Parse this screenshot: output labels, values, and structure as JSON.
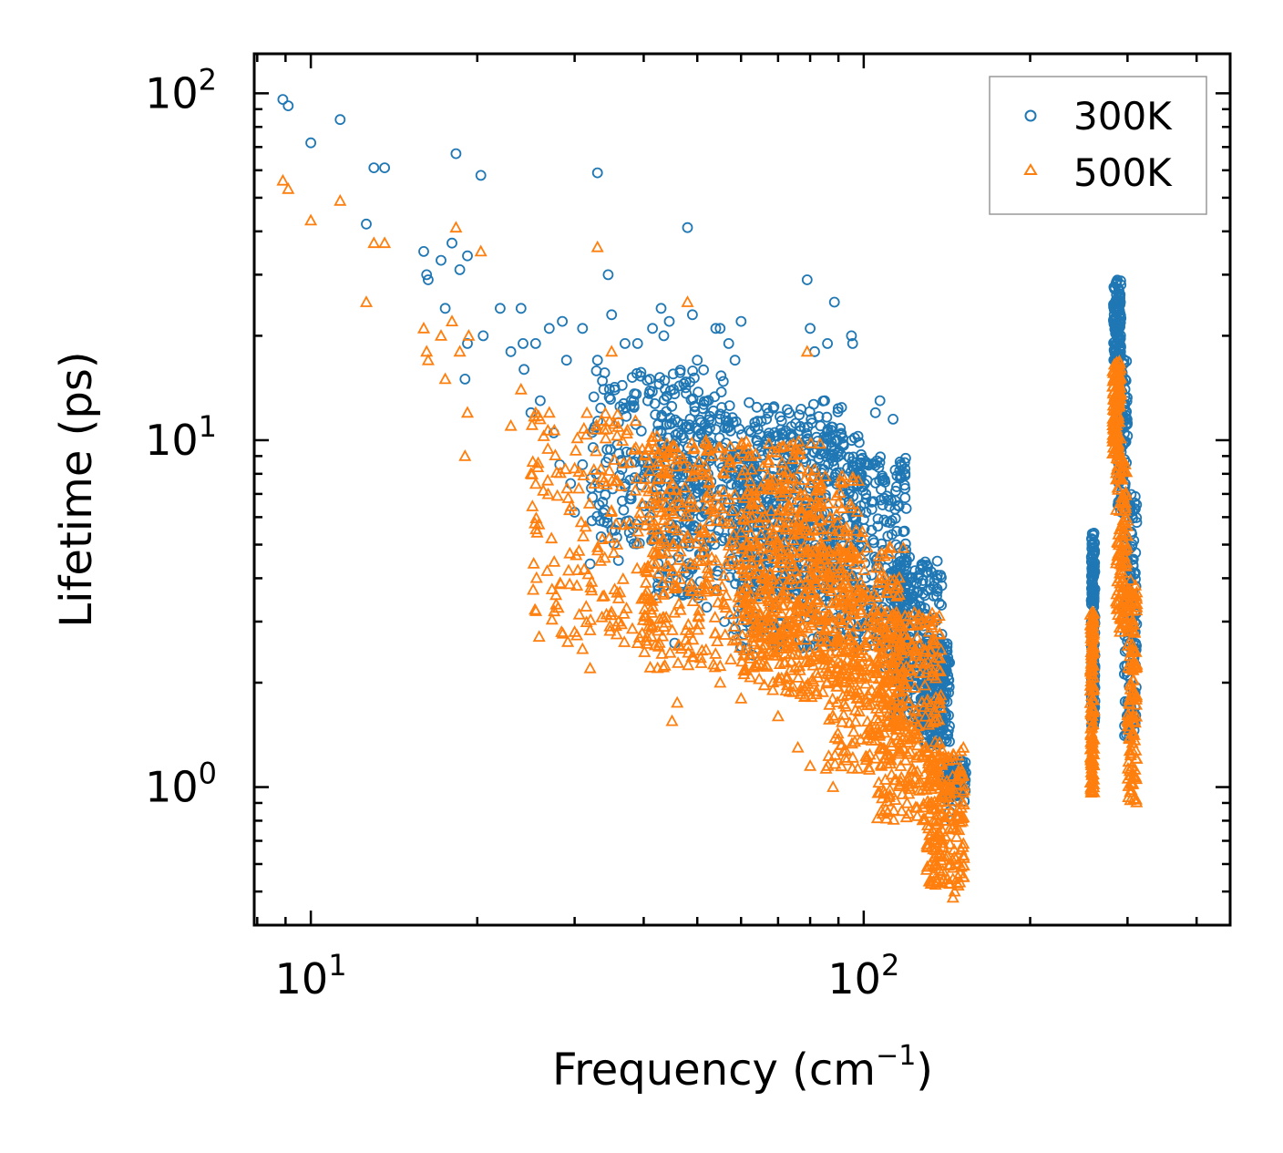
{
  "chart_data": {
    "type": "scatter",
    "title": "",
    "xlabel": "Frequency (cm",
    "xlabel_sup": "−1",
    "xlabel_close": ")",
    "ylabel": "Lifetime (ps)",
    "xscale": "log",
    "yscale": "log",
    "xlim": [
      7.9,
      460
    ],
    "ylim": [
      0.4,
      130
    ],
    "xticks": [
      {
        "value": 10,
        "base": "10",
        "exp": "1"
      },
      {
        "value": 100,
        "base": "10",
        "exp": "2"
      }
    ],
    "yticks": [
      {
        "value": 1,
        "base": "10",
        "exp": "0"
      },
      {
        "value": 10,
        "base": "10",
        "exp": "1"
      },
      {
        "value": 100,
        "base": "10",
        "exp": "2"
      }
    ],
    "legend_position": "top-right",
    "series": [
      {
        "name": "300K",
        "marker": "circle",
        "color": "#1f77b4",
        "points": [
          [
            8.9,
            96
          ],
          [
            9.1,
            92
          ],
          [
            10.0,
            72
          ],
          [
            11.3,
            84
          ],
          [
            12.6,
            42
          ],
          [
            13.0,
            61
          ],
          [
            13.6,
            61
          ],
          [
            16.0,
            35
          ],
          [
            16.2,
            30
          ],
          [
            16.3,
            29
          ],
          [
            17.2,
            33
          ],
          [
            18.0,
            37
          ],
          [
            18.3,
            67
          ],
          [
            18.6,
            31
          ],
          [
            19.2,
            34
          ],
          [
            20.3,
            58
          ],
          [
            17.5,
            24
          ],
          [
            19.2,
            19
          ],
          [
            19.0,
            15
          ],
          [
            20.5,
            20
          ],
          [
            22.0,
            24
          ],
          [
            23.0,
            18
          ],
          [
            24.0,
            24
          ],
          [
            24.2,
            19
          ],
          [
            24.3,
            16
          ],
          [
            25.5,
            19
          ],
          [
            27.0,
            21
          ],
          [
            28.5,
            22
          ],
          [
            29.0,
            17
          ],
          [
            31.0,
            21
          ],
          [
            33.0,
            17
          ],
          [
            33.0,
            59
          ],
          [
            34.5,
            30
          ],
          [
            35.0,
            23
          ],
          [
            37.0,
            19
          ],
          [
            39.0,
            19
          ],
          [
            41.5,
            21
          ],
          [
            43.0,
            24
          ],
          [
            43.5,
            20
          ],
          [
            44.5,
            22
          ],
          [
            48.0,
            41
          ],
          [
            49.0,
            23
          ],
          [
            50.0,
            17
          ],
          [
            54.0,
            21
          ],
          [
            55.0,
            21
          ],
          [
            57.0,
            19
          ],
          [
            58.5,
            17
          ],
          [
            60.0,
            22
          ],
          [
            64.0,
            10
          ],
          [
            79.0,
            29
          ],
          [
            80.0,
            21
          ],
          [
            81.5,
            18
          ],
          [
            85.0,
            13
          ],
          [
            86.0,
            19
          ],
          [
            88.5,
            25
          ],
          [
            95.0,
            20
          ],
          [
            95.5,
            19
          ],
          [
            105.0,
            12
          ],
          [
            107.0,
            13
          ],
          [
            113.0,
            11.5
          ],
          [
            114.0,
            8.2
          ],
          [
            117.0,
            8.4
          ],
          [
            121.0,
            4.6
          ],
          [
            25.0,
            12
          ],
          [
            26.0,
            13
          ],
          [
            27.5,
            10.5
          ],
          [
            28.2,
            8.5
          ],
          [
            29.5,
            7.5
          ],
          [
            30.0,
            6.2
          ],
          [
            31.0,
            8.5
          ],
          [
            32.0,
            4.4
          ],
          [
            34.0,
            6.3
          ],
          [
            35.5,
            5.5
          ],
          [
            36.0,
            4.5
          ],
          [
            38.0,
            5.2
          ],
          [
            41.0,
            6.0
          ],
          [
            45.5,
            2.6
          ],
          [
            47.0,
            3.6
          ],
          [
            52.0,
            3.3
          ],
          [
            56.0,
            3.0
          ],
          [
            63.0,
            2.4
          ],
          [
            143.0,
            0.85
          ],
          [
            144.0,
            0.8
          ],
          [
            145.0,
            0.95
          ],
          [
            152.0,
            1.05
          ],
          [
            153.0,
            1.1
          ],
          [
            150.0,
            1.0
          ]
        ],
        "clusters": [
          {
            "x": [
              32,
              58
            ],
            "y": [
              5,
              16
            ],
            "n": 260
          },
          {
            "x": [
              42,
              92
            ],
            "y": [
              3.5,
              13
            ],
            "n": 500
          },
          {
            "x": [
              58,
              100
            ],
            "y": [
              2.5,
              11
            ],
            "n": 400
          },
          {
            "x": [
              95,
              120
            ],
            "y": [
              2.2,
              9
            ],
            "n": 220
          },
          {
            "x": [
              112,
              140
            ],
            "y": [
              1.5,
              4.5
            ],
            "n": 260
          },
          {
            "x": [
              128,
              143
            ],
            "y": [
              1.3,
              2.6
            ],
            "n": 160
          },
          {
            "x": [
              140,
              153
            ],
            "y": [
              0.9,
              1.2
            ],
            "n": 80
          },
          {
            "x": [
              258,
              262
            ],
            "y": [
              1.5,
              5.4
            ],
            "n": 180
          },
          {
            "x": [
              283,
              292
            ],
            "y": [
              17,
              29
            ],
            "n": 120
          },
          {
            "x": [
              288,
              300
            ],
            "y": [
              6,
              18
            ],
            "n": 100
          },
          {
            "x": [
              296,
              312
            ],
            "y": [
              1.4,
              7
            ],
            "n": 140
          }
        ]
      },
      {
        "name": "500K",
        "marker": "triangle",
        "color": "#ff7f0e",
        "points": [
          [
            8.9,
            56
          ],
          [
            9.1,
            53
          ],
          [
            10.0,
            43
          ],
          [
            11.3,
            49
          ],
          [
            12.6,
            25
          ],
          [
            13.0,
            37
          ],
          [
            13.6,
            37
          ],
          [
            16.0,
            21
          ],
          [
            16.2,
            18
          ],
          [
            16.3,
            17
          ],
          [
            17.2,
            20
          ],
          [
            17.5,
            15
          ],
          [
            18.0,
            22
          ],
          [
            18.3,
            41
          ],
          [
            18.6,
            18
          ],
          [
            19.0,
            9
          ],
          [
            19.2,
            12
          ],
          [
            19.3,
            20
          ],
          [
            20.3,
            35
          ],
          [
            23.0,
            11
          ],
          [
            24.0,
            14
          ],
          [
            25.0,
            8
          ],
          [
            27.0,
            12
          ],
          [
            33.0,
            36
          ],
          [
            35.0,
            18
          ],
          [
            48.0,
            25
          ],
          [
            79.0,
            18
          ],
          [
            30.0,
            2.8
          ],
          [
            31.0,
            2.5
          ],
          [
            32.0,
            2.2
          ],
          [
            36.0,
            3.0
          ],
          [
            39.0,
            2.6
          ],
          [
            45.0,
            1.55
          ],
          [
            46.0,
            1.75
          ],
          [
            55.0,
            2.0
          ],
          [
            60.0,
            1.8
          ],
          [
            70.0,
            1.6
          ],
          [
            76.0,
            1.3
          ],
          [
            80.0,
            1.15
          ],
          [
            88.0,
            1.0
          ],
          [
            145.0,
            0.48
          ],
          [
            146.0,
            0.5
          ],
          [
            148.0,
            0.55
          ]
        ],
        "clusters": [
          {
            "x": [
              25,
              45
            ],
            "y": [
              2.6,
              12
            ],
            "n": 200
          },
          {
            "x": [
              40,
              85
            ],
            "y": [
              2.2,
              10
            ],
            "n": 500
          },
          {
            "x": [
              60,
              100
            ],
            "y": [
              1.8,
              8
            ],
            "n": 400
          },
          {
            "x": [
              85,
              118
            ],
            "y": [
              1.1,
              5
            ],
            "n": 300
          },
          {
            "x": [
              105,
              138
            ],
            "y": [
              0.8,
              3.2
            ],
            "n": 300
          },
          {
            "x": [
              130,
              152
            ],
            "y": [
              0.52,
              1.3
            ],
            "n": 200
          },
          {
            "x": [
              257,
              261
            ],
            "y": [
              0.95,
              3.2
            ],
            "n": 150
          },
          {
            "x": [
              282,
              292
            ],
            "y": [
              9,
              17
            ],
            "n": 110
          },
          {
            "x": [
              286,
              300
            ],
            "y": [
              2.8,
              9
            ],
            "n": 120
          },
          {
            "x": [
              300,
              312
            ],
            "y": [
              0.9,
              4.2
            ],
            "n": 130
          }
        ]
      }
    ]
  }
}
